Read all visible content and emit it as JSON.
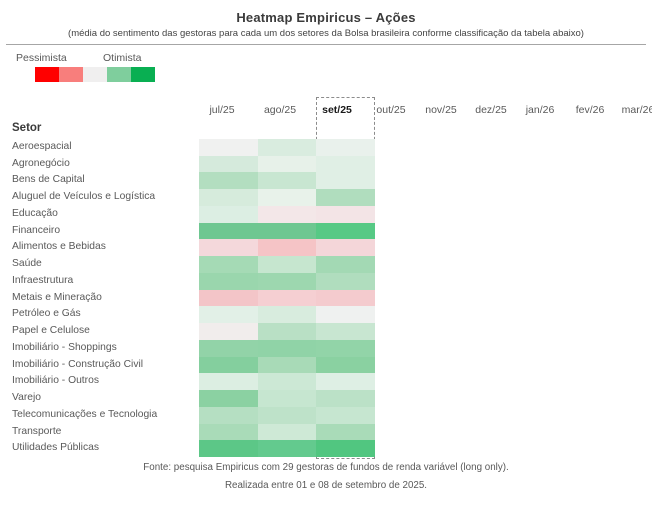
{
  "header": {
    "title": "Heatmap Empiricus – Ações",
    "subtitle": "(média do sentimento das gestoras para cada um dos setores da Bolsa brasileira conforme classificação da tabela abaixo)"
  },
  "legend": {
    "pessimista_label": "Pessimista",
    "otimista_label": "Otimista",
    "swatch_colors": [
      "#FF0000",
      "#F87E7C",
      "#F0EFEF",
      "#7FCE9D",
      "#09AF52"
    ]
  },
  "table": {
    "row_header_label": "Setor"
  },
  "chart_data": {
    "type": "heatmap",
    "title": "Heatmap Empiricus – Ações",
    "columns": [
      "jul/25",
      "ago/25",
      "set/25",
      "out/25",
      "nov/25",
      "dez/25",
      "jan/26",
      "fev/26",
      "mar/26"
    ],
    "highlighted_column": "set/25",
    "filled_columns": [
      "jul/25",
      "ago/25",
      "set/25"
    ],
    "empty_columns": [
      "out/25",
      "nov/25",
      "dez/25",
      "jan/26",
      "fev/26",
      "mar/26"
    ],
    "scale": {
      "left_label": "Pessimista",
      "right_label": "Otimista",
      "colors": [
        "#FF0000",
        "#F87E7C",
        "#F0EFEF",
        "#7FCE9D",
        "#09AF52"
      ]
    },
    "rows": [
      "Aeroespacial",
      "Agronegócio",
      "Bens de Capital",
      "Aluguel de Veículos e Logística",
      "Educação",
      "Financeiro",
      "Alimentos e Bebidas",
      "Saúde",
      "Infraestrutura",
      "Metais e Mineração",
      "Petróleo e Gás",
      "Papel e Celulose",
      "Imobiliário - Shoppings",
      "Imobiliário - Construção Civil",
      "Imobiliário - Outros",
      "Varejo",
      "Telecomunicações e Tecnologia",
      "Transporte",
      "Utilidades Públicas"
    ],
    "cell_colors": [
      [
        "#F0F1F0",
        "#D9ECDF",
        "#E9F1EC"
      ],
      [
        "#D5EADC",
        "#E7F1E9",
        "#E0EFE5"
      ],
      [
        "#B3DEC0",
        "#C8E6D1",
        "#E0EFE5"
      ],
      [
        "#D6EBDC",
        "#E8F2EA",
        "#B0DDBE"
      ],
      [
        "#DCEEE3",
        "#F3E7E8",
        "#F3E4E6"
      ],
      [
        "#6EC791",
        "#6EC791",
        "#57C985"
      ],
      [
        "#F4D8DB",
        "#F5C4C6",
        "#F4D6D9"
      ],
      [
        "#A5DAB5",
        "#C6E6CF",
        "#A3D9B4"
      ],
      [
        "#9AD6AD",
        "#9DD7AF",
        "#B0DDBE"
      ],
      [
        "#F3C5C8",
        "#F5CFD2",
        "#F4CBCE"
      ],
      [
        "#E2F0E7",
        "#D8ECDE",
        "#EFF1F0"
      ],
      [
        "#F1EDEC",
        "#B9E0C5",
        "#C8E6D1"
      ],
      [
        "#92D3A8",
        "#90D3A7",
        "#92D4A8"
      ],
      [
        "#84CF9E",
        "#A8DAB7",
        "#8AD1A1"
      ],
      [
        "#DCEEE2",
        "#CCE8D5",
        "#DEEFE4"
      ],
      [
        "#8BD1A2",
        "#C6E6D0",
        "#BBE1C7"
      ],
      [
        "#B5DFC2",
        "#BEE2C9",
        "#C6E6D0"
      ],
      [
        "#A9DBB8",
        "#CEE9D6",
        "#A9DBB8"
      ],
      [
        "#5CC787",
        "#63CA8E",
        "#51C680"
      ]
    ]
  },
  "footer": {
    "line1": "Fonte: pesquisa Empiricus com 29 gestoras de fundos de renda variável (long only).",
    "line2": "Realizada entre 01 e 08 de setembro de 2025."
  }
}
